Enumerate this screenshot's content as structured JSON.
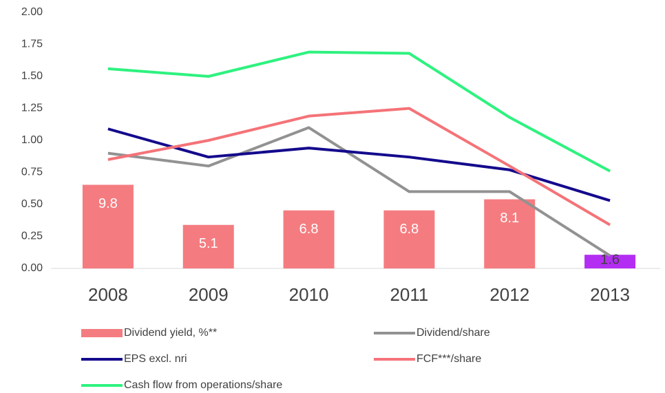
{
  "chart_data": {
    "type": "bar-line",
    "categories": [
      "2008",
      "2009",
      "2010",
      "2011",
      "2012",
      "2013"
    ],
    "ylim": [
      0,
      2
    ],
    "yticks": [
      {
        "value": 0,
        "label": "0.00"
      },
      {
        "value": 0.25,
        "label": "0.25"
      },
      {
        "value": 0.5,
        "label": "0.50"
      },
      {
        "value": 0.75,
        "label": "0.75"
      },
      {
        "value": 1,
        "label": "1.00"
      },
      {
        "value": 1.25,
        "label": "1.25"
      },
      {
        "value": 1.5,
        "label": "1.50"
      },
      {
        "value": 1.75,
        "label": "1.75"
      },
      {
        "value": 2,
        "label": "2.00"
      }
    ],
    "y2lim": [
      0,
      30
    ],
    "series": [
      {
        "name": "Dividend yield, %**",
        "type": "bar",
        "axis": "y2",
        "color": "#f47c80",
        "colors": [
          "#f47c80",
          "#f47c80",
          "#f47c80",
          "#f47c80",
          "#f47c80",
          "#b32ef2"
        ],
        "values": [
          9.8,
          5.1,
          6.8,
          6.8,
          8.1,
          1.6
        ]
      },
      {
        "name": "Dividend/share",
        "type": "line",
        "color": "#929292",
        "values": [
          0.9,
          0.8,
          1.1,
          0.6,
          0.6,
          0.1
        ]
      },
      {
        "name": "EPS excl. nri",
        "type": "line",
        "color": "#140a8c",
        "values": [
          1.09,
          0.87,
          0.94,
          0.87,
          0.77,
          0.53
        ]
      },
      {
        "name": "FCF***/share",
        "type": "line",
        "color": "#f47378",
        "values": [
          0.85,
          1.0,
          1.19,
          1.25,
          0.8,
          0.34
        ]
      },
      {
        "name": "Cash flow from operations/share",
        "type": "line",
        "color": "#2ef27f",
        "values": [
          1.56,
          1.5,
          1.69,
          1.68,
          1.18,
          0.76
        ]
      }
    ]
  }
}
